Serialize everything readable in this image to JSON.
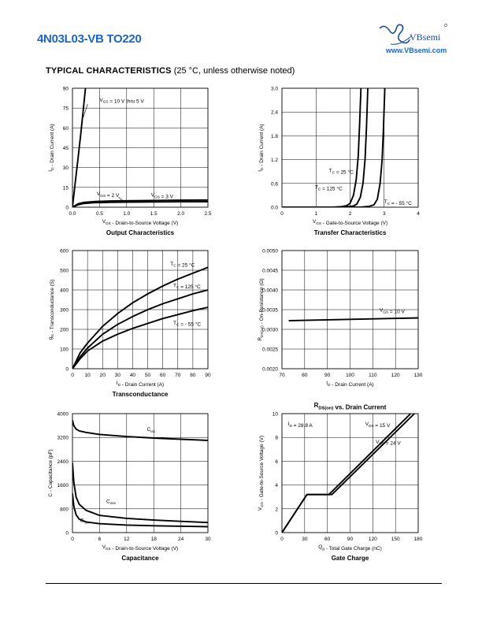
{
  "header": {
    "part_number": "4N03L03-VB TO220",
    "brand": "VBsemi",
    "website": "www.VBsemi.com",
    "section_title": "TYPICAL CHARACTERISTICS",
    "section_note": "(25 °C, unless otherwise noted)"
  },
  "chart_data": [
    {
      "id": "output",
      "type": "line",
      "title": "Output Characteristics",
      "xlabel": "V_DS - Drain-to-Source Voltage (V)",
      "ylabel": "I_D - Drain Current (A)",
      "xlim": [
        0,
        2.5
      ],
      "ylim": [
        0,
        90
      ],
      "xticks": [
        "0.0",
        "0.5",
        "1.0",
        "1.5",
        "2.0",
        "2.5"
      ],
      "yticks": [
        "0",
        "15",
        "30",
        "45",
        "60",
        "75",
        "90"
      ],
      "grid": true,
      "series": [
        {
          "name": "V_GS = 10 V thru 5 V",
          "x": [
            0,
            0.05,
            0.1,
            0.15,
            0.2,
            0.24
          ],
          "y": [
            0,
            18,
            36,
            54,
            74,
            90
          ]
        },
        {
          "name": "V_GS = 2 V",
          "x": [
            0,
            0.1,
            0.2,
            0.4,
            0.7,
            1.0,
            1.5,
            2.0,
            2.5
          ],
          "y": [
            0,
            1.8,
            2.8,
            3.4,
            3.7,
            3.9,
            4.0,
            4.1,
            4.2
          ]
        },
        {
          "name": "V_GS = 3 V",
          "x": [
            0,
            0.1,
            0.2,
            0.4,
            0.7,
            1.0,
            1.5,
            2.0,
            2.5
          ],
          "y": [
            0,
            2.5,
            3.6,
            4.3,
            4.7,
            4.9,
            5.1,
            5.3,
            5.4
          ]
        }
      ],
      "annotations": [
        {
          "text": "V_GS = 10 V thru 5 V",
          "x": 0.5,
          "y": 80
        },
        {
          "text": "V_GS = 2 V",
          "x": 0.45,
          "y": 9
        },
        {
          "text": "V_GS = 3 V",
          "x": 1.45,
          "y": 8
        }
      ]
    },
    {
      "id": "transfer",
      "type": "line",
      "title": "Transfer Characteristics",
      "xlabel": "V_GS - Gate-to-Source Voltage (V)",
      "ylabel": "I_D - Drain Current (A)",
      "xlim": [
        0,
        4
      ],
      "ylim": [
        0,
        3.0
      ],
      "xticks": [
        "0",
        "1",
        "2",
        "3",
        "4"
      ],
      "yticks": [
        "0.0",
        "0.6",
        "1.2",
        "1.8",
        "2.4",
        "3.0"
      ],
      "grid": true,
      "series": [
        {
          "name": "T_C = 25 °C",
          "x": [
            0,
            1.5,
            1.9,
            2.1,
            2.2,
            2.3,
            2.38,
            2.44,
            2.48,
            2.52
          ],
          "y": [
            0,
            0,
            0.01,
            0.03,
            0.08,
            0.25,
            0.6,
            1.2,
            2.0,
            3.0
          ]
        },
        {
          "name": "T_C = 125 °C",
          "x": [
            0,
            1.5,
            1.7,
            1.9,
            2.0,
            2.1,
            2.18,
            2.24,
            2.28,
            2.32
          ],
          "y": [
            0,
            0,
            0.01,
            0.04,
            0.1,
            0.3,
            0.7,
            1.3,
            2.1,
            3.0
          ]
        },
        {
          "name": "T_C = - 55 °C",
          "x": [
            0,
            2.3,
            2.55,
            2.7,
            2.8,
            2.88,
            2.94,
            2.98,
            3.02
          ],
          "y": [
            0,
            0,
            0.02,
            0.06,
            0.2,
            0.6,
            1.2,
            2.0,
            3.0
          ]
        }
      ],
      "annotations": [
        {
          "text": "T_C = 25 °C",
          "x": 1.38,
          "y": 0.88
        },
        {
          "text": "T_C = 125 °C",
          "x": 0.97,
          "y": 0.47
        },
        {
          "text": "T_C = - 55 °C",
          "x": 3.0,
          "y": 0.1
        }
      ]
    },
    {
      "id": "transconductance",
      "type": "line",
      "title": "Transconductance",
      "xlabel": "I_D - Drain Current (A)",
      "ylabel": "g_fs - Transconductance (S)",
      "xlim": [
        0,
        90
      ],
      "ylim": [
        0,
        600
      ],
      "xticks": [
        "0",
        "10",
        "20",
        "30",
        "40",
        "50",
        "60",
        "70",
        "80",
        "90"
      ],
      "yticks": [
        "0",
        "100",
        "200",
        "300",
        "400",
        "500",
        "600"
      ],
      "grid": true,
      "series": [
        {
          "name": "T_C = 25 °C",
          "x": [
            0,
            5,
            10,
            20,
            30,
            40,
            50,
            60,
            70,
            80,
            90
          ],
          "y": [
            0,
            80,
            130,
            215,
            280,
            335,
            380,
            420,
            455,
            485,
            515
          ]
        },
        {
          "name": "T_C = 125 °C",
          "x": [
            0,
            5,
            10,
            20,
            30,
            40,
            50,
            60,
            70,
            80,
            90
          ],
          "y": [
            0,
            60,
            105,
            175,
            225,
            265,
            300,
            330,
            355,
            380,
            400
          ]
        },
        {
          "name": "T_C = - 55 °C",
          "x": [
            0,
            5,
            10,
            20,
            30,
            40,
            50,
            60,
            70,
            80,
            90
          ],
          "y": [
            0,
            50,
            90,
            140,
            175,
            205,
            230,
            255,
            275,
            295,
            312
          ]
        }
      ],
      "annotations": [
        {
          "text": "T_C = 25 °C",
          "x": 65,
          "y": 525
        },
        {
          "text": "T_C = 125 °C",
          "x": 67,
          "y": 415
        },
        {
          "text": "T_C = - 55 °C",
          "x": 67,
          "y": 225
        }
      ]
    },
    {
      "id": "rdson",
      "type": "line",
      "title": "R_DS(on) vs. Drain Current",
      "xlabel": "I_D - Drain Current (A)",
      "ylabel": "R_DS(on) - On-Resistance (Ω)",
      "xlim": [
        70,
        130
      ],
      "ylim": [
        0.002,
        0.005
      ],
      "xticks": [
        "70",
        "80",
        "90",
        "100",
        "110",
        "120",
        "130"
      ],
      "yticks": [
        "0.0020",
        "0.0025",
        "0.0030",
        "0.0035",
        "0.0040",
        "0.0045",
        "0.0050"
      ],
      "grid": true,
      "series": [
        {
          "name": "V_GS = 10 V",
          "x": [
            73,
            130
          ],
          "y": [
            0.00322,
            0.00329
          ]
        }
      ],
      "annotations": [
        {
          "text": "V_GS = 10 V",
          "x": 113,
          "y": 0.00345
        }
      ]
    },
    {
      "id": "capacitance",
      "type": "line",
      "title": "Capacitance",
      "xlabel": "V_DS - Drain-to-Source Voltage (V)",
      "ylabel": "C - Capacitance (pF)",
      "xlim": [
        0,
        30
      ],
      "ylim": [
        0,
        4000
      ],
      "xticks": [
        "0",
        "6",
        "12",
        "18",
        "24",
        "30"
      ],
      "yticks": [
        "0",
        "800",
        "1600",
        "2400",
        "3200",
        "4000"
      ],
      "grid": true,
      "series": [
        {
          "name": "C_iss",
          "x": [
            0,
            0.3,
            0.8,
            1.5,
            3,
            6,
            12,
            18,
            24,
            30
          ],
          "y": [
            3780,
            3600,
            3480,
            3420,
            3370,
            3300,
            3230,
            3180,
            3140,
            3100
          ]
        },
        {
          "name": "C_oss",
          "x": [
            0,
            0.3,
            0.8,
            1.5,
            3,
            6,
            12,
            18,
            24,
            30
          ],
          "y": [
            2350,
            1700,
            1200,
            950,
            750,
            580,
            480,
            420,
            380,
            340
          ]
        },
        {
          "name": "C_rss",
          "x": [
            0,
            0.3,
            0.8,
            1.5,
            3,
            6,
            12,
            18,
            24,
            30
          ],
          "y": [
            1320,
            900,
            600,
            450,
            360,
            300,
            255,
            230,
            215,
            200
          ]
        }
      ],
      "annotations": [
        {
          "text": "C_iss",
          "x": 16.5,
          "y": 3420
        },
        {
          "text": "C_oss",
          "x": 7.5,
          "y": 1000
        },
        {
          "text": "C_rss",
          "x": 1.7,
          "y": 360
        }
      ]
    },
    {
      "id": "gate_charge",
      "type": "line",
      "title": "Gate Charge",
      "xlabel": "Q_g - Total Gate Charge (nC)",
      "ylabel": "V_GS - Gate-to-Source Voltage (V)",
      "xlim": [
        0,
        180
      ],
      "ylim": [
        0,
        10
      ],
      "xticks": [
        "0",
        "30",
        "60",
        "90",
        "120",
        "150",
        "180"
      ],
      "yticks": [
        "0",
        "2",
        "4",
        "6",
        "8",
        "10"
      ],
      "grid": true,
      "series": [
        {
          "name": "V_DS = 15 V",
          "x": [
            0,
            33,
            62,
            170
          ],
          "y": [
            0,
            3.2,
            3.2,
            10
          ]
        },
        {
          "name": "V_DS = 24 V",
          "x": [
            0,
            33,
            66,
            175
          ],
          "y": [
            0,
            3.2,
            3.2,
            10
          ]
        }
      ],
      "annotations": [
        {
          "text": "I_D = 28.8 A",
          "x": 8,
          "y": 9.0
        },
        {
          "text": "V_DS = 15 V",
          "x": 110,
          "y": 9.0
        },
        {
          "text": "V_DS = 24 V",
          "x": 124,
          "y": 7.5
        }
      ]
    }
  ]
}
